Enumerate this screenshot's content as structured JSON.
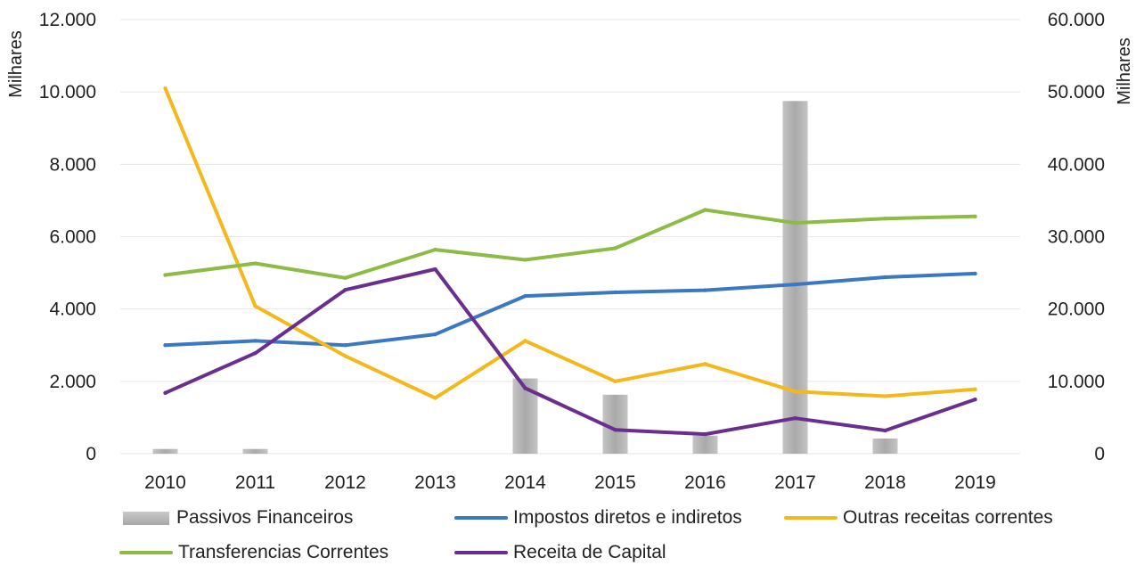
{
  "chart_data": {
    "type": "bar+line",
    "title": "",
    "categories": [
      "2010",
      "2011",
      "2012",
      "2013",
      "2014",
      "2015",
      "2016",
      "2017",
      "2018",
      "2019"
    ],
    "left_axis": {
      "unit_label": "Milhares",
      "ylim": [
        0,
        12000
      ],
      "ticks": [
        "0",
        "2.000",
        "4.000",
        "6.000",
        "8.000",
        "10.000",
        "12.000"
      ]
    },
    "right_axis": {
      "unit_label": "Milhares",
      "ylim": [
        0,
        60000
      ],
      "ticks": [
        "0",
        "10.000",
        "20.000",
        "30.000",
        "40.000",
        "50.000",
        "60.000"
      ]
    },
    "grid": true,
    "legend_position": "bottom",
    "series": [
      {
        "name": "Passivos Financeiros",
        "kind": "bar",
        "axis": "left",
        "color": "#b0b0b0",
        "values": [
          130,
          130,
          0,
          0,
          2080,
          1630,
          500,
          9750,
          420,
          0
        ]
      },
      {
        "name": "Impostos diretos e indiretos",
        "kind": "line",
        "axis": "right",
        "color": "#3b78c2",
        "values": [
          15000,
          15600,
          15000,
          16500,
          21800,
          22300,
          22600,
          23400,
          24400,
          24900
        ]
      },
      {
        "name": "Outras receitas correntes",
        "kind": "line",
        "axis": "left",
        "color": "#f5b81c",
        "values": [
          10100,
          4080,
          2700,
          1540,
          3120,
          2000,
          2480,
          1720,
          1590,
          1780
        ]
      },
      {
        "name": "Transferencias Correntes",
        "kind": "line",
        "axis": "right",
        "color": "#8dbb45",
        "values": [
          24700,
          26300,
          24300,
          28200,
          26800,
          28400,
          33700,
          31900,
          32500,
          32800
        ]
      },
      {
        "name": "Receita de Capital",
        "kind": "line",
        "axis": "left",
        "color": "#6a2e8f",
        "values": [
          1680,
          2780,
          4530,
          5100,
          1810,
          660,
          540,
          980,
          640,
          1500
        ]
      }
    ]
  }
}
